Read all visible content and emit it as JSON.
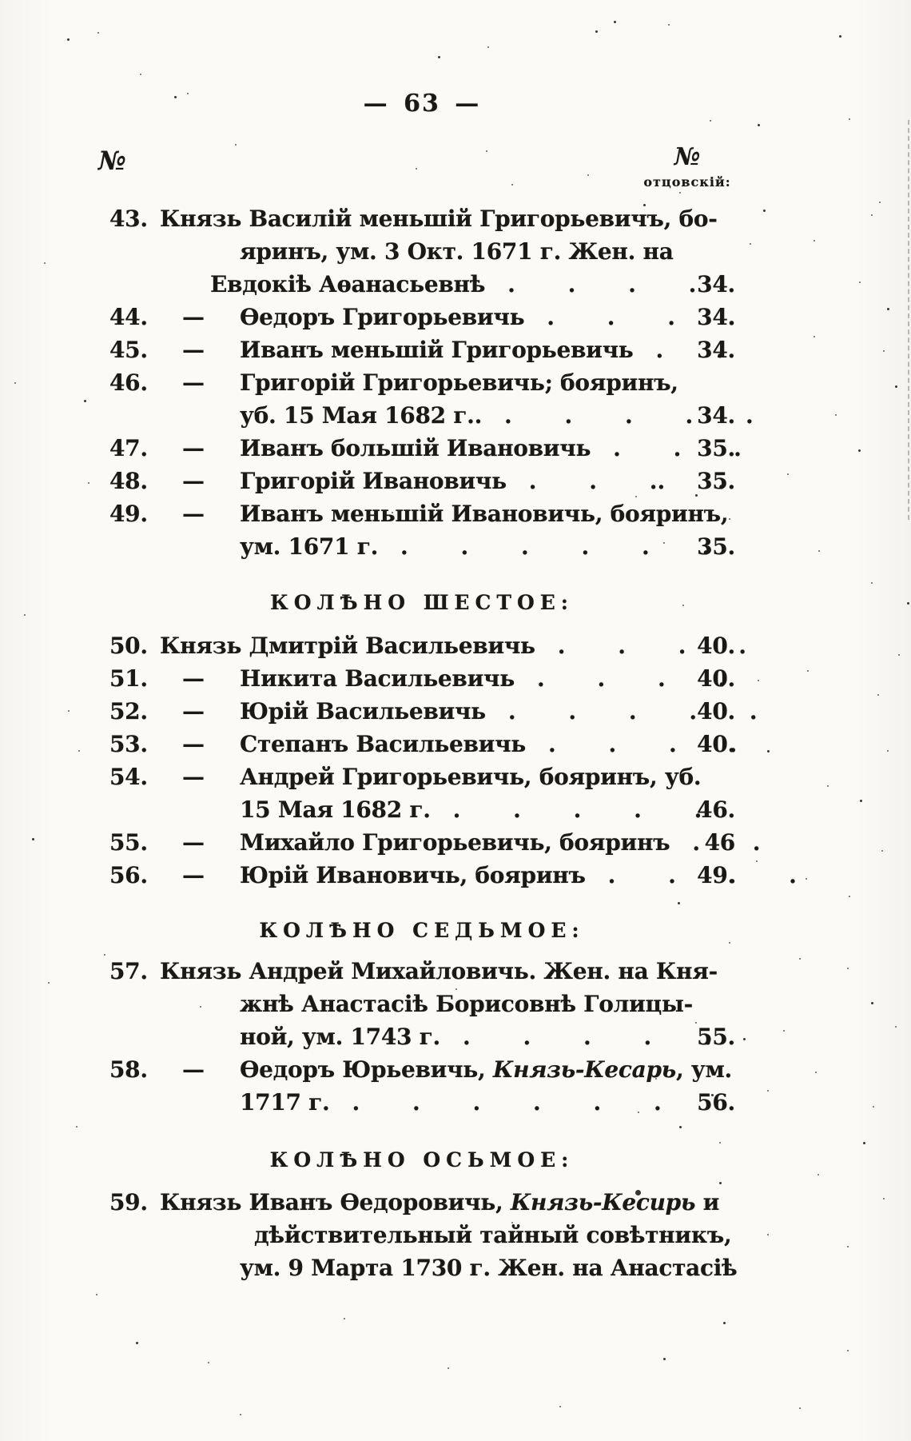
{
  "page": {
    "number_display": "— 63 —"
  },
  "columns": {
    "left_symbol": "№",
    "right_symbol": "№",
    "right_label": "отцовскій:"
  },
  "dash_glyph": "—",
  "lines": [
    {
      "type": "e",
      "num": "43.",
      "seg": [
        {
          "t": "Князь Василій меньшій Григорьевичъ, бо-"
        }
      ]
    },
    {
      "type": "c",
      "seg": [
        {
          "t": "яринъ, ум. 3 Окт. 1671 г. Жен. на"
        }
      ]
    },
    {
      "type": "c",
      "seg": [
        {
          "t": "Евдокіѣ Аѳанасьевнѣ"
        }
      ],
      "dots": ". . . .",
      "ref": "34."
    },
    {
      "type": "e",
      "num": "44.",
      "dash": true,
      "seg": [
        {
          "t": "Ѳедоръ Григорьевичь"
        }
      ],
      "dots": ". . . .",
      "ref": "34."
    },
    {
      "type": "e",
      "num": "45.",
      "dash": true,
      "seg": [
        {
          "t": "Иванъ меньшій Григорьевичь"
        }
      ],
      "dots": ". .",
      "ref": "34."
    },
    {
      "type": "e",
      "num": "46.",
      "dash": true,
      "seg": [
        {
          "t": "Григорій Григорьевичь; бояринъ,"
        }
      ]
    },
    {
      "type": "c",
      "seg": [
        {
          "t": "уб. 15 Мая 1682 г.."
        }
      ],
      "dots": ". . . . .",
      "ref": "34."
    },
    {
      "type": "e",
      "num": "47.",
      "dash": true,
      "seg": [
        {
          "t": "Иванъ большій Ивановичь"
        }
      ],
      "dots": ". . .",
      "ref": "35."
    },
    {
      "type": "e",
      "num": "48.",
      "dash": true,
      "seg": [
        {
          "t": "Григорій Ивановичь"
        }
      ],
      "dots": ". . .. .",
      "ref": "35."
    },
    {
      "type": "e",
      "num": "49.",
      "dash": true,
      "seg": [
        {
          "t": "Иванъ меньшій Ивановичь, бояринъ,"
        }
      ]
    },
    {
      "type": "c",
      "seg": [
        {
          "t": "ум. 1671 г."
        }
      ],
      "dots": ". . . . . .",
      "ref": "35."
    },
    {
      "type": "h",
      "seg": [
        {
          "t": "КОЛѢНО ШЕСТОЕ:"
        }
      ]
    },
    {
      "type": "e",
      "num": "50.",
      "seg": [
        {
          "t": "Князь Дмитрій Васильевичь"
        }
      ],
      "dots": ". . . .",
      "ref": "40."
    },
    {
      "type": "e",
      "num": "51.",
      "dash": true,
      "seg": [
        {
          "t": "Никита Васильевичь"
        }
      ],
      "dots": ". . . .",
      "ref": "40."
    },
    {
      "type": "e",
      "num": "52.",
      "dash": true,
      "seg": [
        {
          "t": "Юрій Васильевичь"
        }
      ],
      "dots": ". . . . .",
      "ref": "40."
    },
    {
      "type": "e",
      "num": "53.",
      "dash": true,
      "seg": [
        {
          "t": "Степанъ Васильевичь"
        }
      ],
      "dots": ". . . .",
      "ref": "40."
    },
    {
      "type": "e",
      "num": "54.",
      "dash": true,
      "seg": [
        {
          "t": "Андрей Григорьевичь, бояринъ, уб."
        }
      ]
    },
    {
      "type": "c",
      "seg": [
        {
          "t": "15 Мая 1682 г."
        }
      ],
      "dots": ". . . . .",
      "ref": "46."
    },
    {
      "type": "e",
      "num": "55.",
      "dash": true,
      "seg": [
        {
          "t": "Михайло Григорьевичь, бояринъ"
        }
      ],
      "dots": ". .",
      "ref": "46"
    },
    {
      "type": "e",
      "num": "56.",
      "dash": true,
      "seg": [
        {
          "t": "Юрій Ивановичь, бояринъ"
        }
      ],
      "dots": ". . . .",
      "ref": "49."
    },
    {
      "type": "h",
      "seg": [
        {
          "t": "КОЛѢНО СЕДЬМОЕ:"
        }
      ]
    },
    {
      "type": "e",
      "num": "57.",
      "seg": [
        {
          "t": "Князь Андрей Михайловичь. Жен. на Кня-"
        }
      ]
    },
    {
      "type": "c",
      "seg": [
        {
          "t": "жнѣ Анастасіѣ Борисовнѣ Голицы-"
        }
      ]
    },
    {
      "type": "c",
      "seg": [
        {
          "t": "ной, ум. 1743 г."
        }
      ],
      "dots": ". . . . .",
      "ref": "55."
    },
    {
      "type": "e",
      "num": "58.",
      "dash": true,
      "seg": [
        {
          "t": "Ѳедоръ Юрьевичь, "
        },
        {
          "t": "Князь-Кесарь",
          "i": true
        },
        {
          "t": ", ум."
        }
      ]
    },
    {
      "type": "c",
      "seg": [
        {
          "t": "1717 г."
        }
      ],
      "dots": ". . . . . .",
      "ref": "56."
    },
    {
      "type": "h",
      "seg": [
        {
          "t": "КОЛѢНО ОСЬМОЕ:"
        }
      ]
    },
    {
      "type": "e",
      "num": "59.",
      "seg": [
        {
          "t": "Князь Иванъ Ѳедоровичь, "
        },
        {
          "t": "Князь-Кесирь",
          "i": true
        },
        {
          "t": " и"
        }
      ]
    },
    {
      "type": "c",
      "seg": [
        {
          "t": "дѣйствительный тайный совѣтникъ,"
        }
      ]
    },
    {
      "type": "c",
      "seg": [
        {
          "t": "ум. 9 Марта 1730 г. Жен. на Анастасіѣ"
        }
      ]
    }
  ]
}
